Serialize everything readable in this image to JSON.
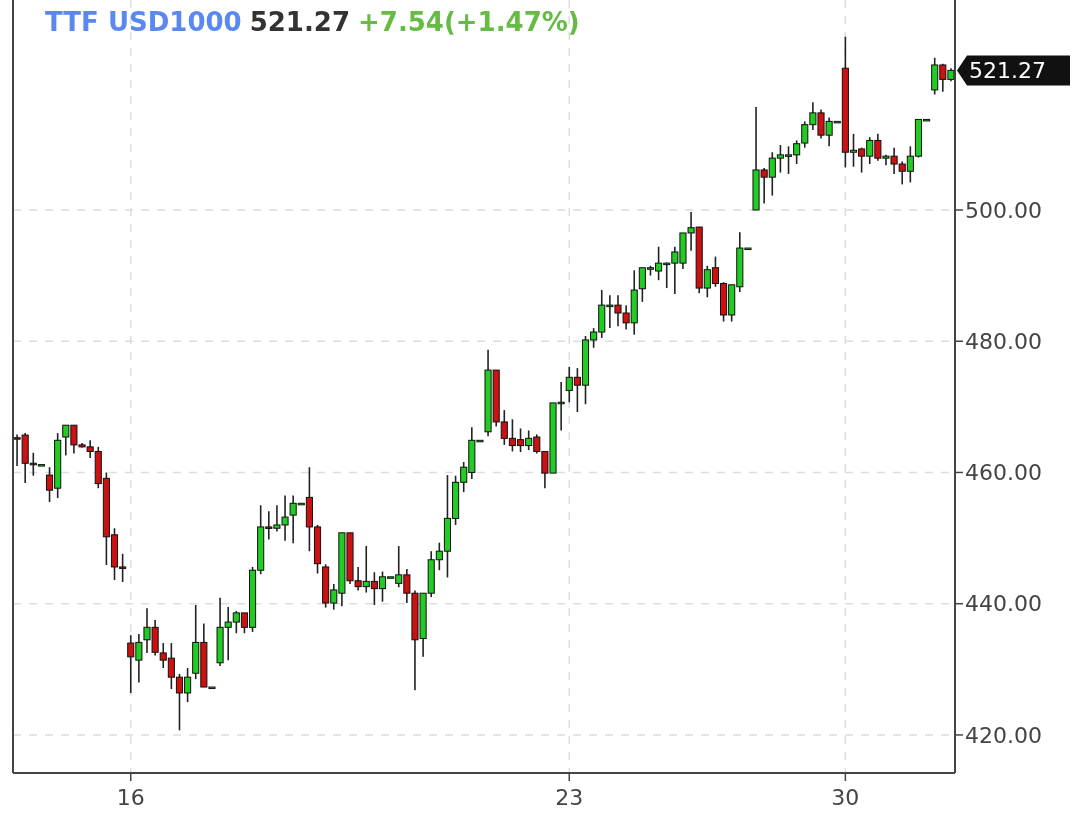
{
  "chart_data": {
    "type": "candlestick",
    "title": "TTF USD1000",
    "subtitle": "521.27",
    "annotations": [
      "+7.54(+1.47%)",
      "521.27"
    ],
    "categories": [
      null,
      null,
      null,
      null,
      null,
      null,
      null,
      null,
      null,
      null,
      null,
      null,
      null,
      null,
      "16",
      null,
      null,
      null,
      null,
      null,
      null,
      null,
      null,
      null,
      null,
      null,
      null,
      null,
      null,
      null,
      null,
      null,
      null,
      null,
      null,
      null,
      null,
      null,
      null,
      null,
      null,
      null,
      null,
      null,
      null,
      null,
      null,
      null,
      null,
      null,
      null,
      null,
      null,
      null,
      null,
      null,
      null,
      null,
      null,
      null,
      null,
      null,
      null,
      null,
      null,
      null,
      null,
      null,
      "23",
      null,
      null,
      null,
      null,
      null,
      null,
      null,
      null,
      null,
      null,
      null,
      null,
      null,
      null,
      null,
      null,
      null,
      null,
      null,
      null,
      null,
      null,
      null,
      null,
      null,
      null,
      null,
      null,
      null,
      null,
      null,
      null,
      null,
      "30",
      null,
      null,
      null,
      null,
      null,
      null,
      null,
      null,
      null,
      null,
      null,
      null,
      null
    ],
    "ohlc": [
      [
        465.3,
        465.8,
        461,
        465.1
      ],
      [
        465.7,
        466,
        458.4,
        461.4
      ],
      [
        461.4,
        463,
        459.5,
        461.2
      ],
      [
        461.2,
        461.2,
        461.2,
        461.2
      ],
      [
        459.6,
        460.8,
        455.5,
        457.3
      ],
      [
        457.6,
        466,
        456.1,
        464.9
      ],
      [
        465.4,
        467.2,
        462.6,
        467.2
      ],
      [
        467.2,
        467.2,
        462.9,
        464.2
      ],
      [
        464.2,
        464.5,
        463.8,
        463.9
      ],
      [
        463.9,
        464.9,
        462.2,
        463.2
      ],
      [
        463.2,
        463.9,
        457.6,
        458.3
      ],
      [
        459.1,
        460,
        445.9,
        450.2
      ],
      [
        450.5,
        451.5,
        443.6,
        445.6
      ],
      [
        445.6,
        447.6,
        443.3,
        445.4
      ],
      [
        434,
        435.2,
        426.4,
        431.9
      ],
      [
        431.4,
        435.4,
        428,
        434.1
      ],
      [
        434.5,
        439.3,
        432.5,
        436.4
      ],
      [
        436.4,
        437.5,
        432.1,
        432.6
      ],
      [
        432.5,
        434,
        430.2,
        431.4
      ],
      [
        431.7,
        434,
        427,
        428.8
      ],
      [
        428.8,
        429.3,
        420.7,
        426.4
      ],
      [
        426.4,
        430.2,
        425,
        428.8
      ],
      [
        429.4,
        439.8,
        428.5,
        434.1
      ],
      [
        434.1,
        437,
        427.3,
        427.3
      ],
      [
        427.3,
        427.3,
        427.3,
        427.3
      ],
      [
        431,
        440.9,
        430.5,
        436.4
      ],
      [
        436.4,
        439.5,
        431.4,
        437.2
      ],
      [
        437.2,
        438.9,
        435.5,
        438.6
      ],
      [
        438.6,
        438.6,
        435.5,
        436.4
      ],
      [
        436.4,
        445.6,
        435.7,
        445.1
      ],
      [
        445.1,
        455,
        444.5,
        451.7
      ],
      [
        451.7,
        454.1,
        449.8,
        451.5
      ],
      [
        451.5,
        455,
        451,
        452
      ],
      [
        452,
        456.5,
        449.6,
        453.2
      ],
      [
        453.5,
        456.5,
        449.2,
        455.3
      ],
      [
        455.3,
        455.3,
        455.3,
        455.3
      ],
      [
        456.2,
        460.8,
        448,
        451.7
      ],
      [
        451.7,
        452,
        444.6,
        446.1
      ],
      [
        445.6,
        446,
        439.4,
        440.1
      ],
      [
        440.1,
        443,
        439.1,
        442.1
      ],
      [
        441.6,
        450.8,
        439.6,
        450.8
      ],
      [
        450.8,
        450.8,
        443,
        443.5
      ],
      [
        443.5,
        445.6,
        442,
        442.6
      ],
      [
        442.6,
        448.8,
        441.7,
        443.4
      ],
      [
        443.4,
        444.8,
        439.8,
        442.3
      ],
      [
        442.3,
        444.9,
        440.3,
        444.1
      ],
      [
        444.1,
        444.1,
        444.1,
        444.1
      ],
      [
        443.1,
        448.8,
        442.5,
        444.4
      ],
      [
        444.4,
        445.3,
        440.1,
        441.6
      ],
      [
        441.6,
        442,
        426.8,
        434.5
      ],
      [
        434.7,
        441.6,
        431.9,
        441.6
      ],
      [
        441.6,
        448,
        441,
        446.7
      ],
      [
        446.7,
        449.3,
        445.1,
        448
      ],
      [
        448,
        459.6,
        444,
        453
      ],
      [
        453,
        459.5,
        452,
        458.5
      ],
      [
        458.5,
        461.6,
        457,
        460.8
      ],
      [
        460,
        466.9,
        459,
        464.9
      ],
      [
        464.9,
        464.9,
        464.9,
        464.9
      ],
      [
        466.2,
        478.7,
        465.5,
        475.6
      ],
      [
        475.6,
        475.6,
        467,
        467.7
      ],
      [
        467.7,
        469.5,
        464.2,
        465.2
      ],
      [
        465.2,
        468.1,
        463.2,
        464.1
      ],
      [
        465,
        466.7,
        463.1,
        464.1
      ],
      [
        464.1,
        466.4,
        463.4,
        465.2
      ],
      [
        465.4,
        465.8,
        462.9,
        463.2
      ],
      [
        463.2,
        463.2,
        457.6,
        459.9
      ],
      [
        459.9,
        470.6,
        459.9,
        470.6
      ],
      [
        470.6,
        473.8,
        466.4,
        470.7
      ],
      [
        472.5,
        476.1,
        470.7,
        474.5
      ],
      [
        474.5,
        475.9,
        469.2,
        473.3
      ],
      [
        473.3,
        480.8,
        470.4,
        480.2
      ],
      [
        480.2,
        482,
        479,
        481.4
      ],
      [
        481.4,
        487.8,
        480.5,
        485.5
      ],
      [
        485.5,
        487,
        482,
        485.5
      ],
      [
        485.5,
        487,
        482.3,
        484.3
      ],
      [
        484.3,
        485.5,
        481.8,
        482.8
      ],
      [
        482.8,
        490.8,
        481,
        487.8
      ],
      [
        488,
        491.2,
        486,
        491.2
      ],
      [
        491.2,
        491.5,
        490,
        491.2
      ],
      [
        490.7,
        494.4,
        489.3,
        491.9
      ],
      [
        491.9,
        492,
        488.1,
        491.9
      ],
      [
        491.9,
        494.4,
        487.2,
        493.6
      ],
      [
        491.9,
        496.5,
        491,
        496.5
      ],
      [
        496.5,
        499.7,
        493.8,
        497.3
      ],
      [
        497.4,
        497.4,
        487.3,
        488.1
      ],
      [
        488.1,
        491.5,
        486.7,
        490.9
      ],
      [
        491.2,
        492.9,
        488.3,
        488.8
      ],
      [
        488.8,
        489,
        483,
        484
      ],
      [
        484,
        488.6,
        483,
        488.6
      ],
      [
        488.3,
        496.6,
        487.5,
        494.2
      ],
      [
        494.2,
        494.2,
        494.2,
        494.2
      ],
      [
        500,
        515.7,
        500,
        506.1
      ],
      [
        506.1,
        506.4,
        501,
        505
      ],
      [
        505,
        508.8,
        502.2,
        507.9
      ],
      [
        507.9,
        509.9,
        505.7,
        508.4
      ],
      [
        508.4,
        509.7,
        505.5,
        508.4
      ],
      [
        508.4,
        510.6,
        507,
        510.1
      ],
      [
        510.2,
        513.5,
        509.5,
        513
      ],
      [
        513,
        516.4,
        512.2,
        514.8
      ],
      [
        514.8,
        515.3,
        510.9,
        511.4
      ],
      [
        511.4,
        514.1,
        509.7,
        513.5
      ],
      [
        513.5,
        513.5,
        513.5,
        513.5
      ],
      [
        521.6,
        526.4,
        506.5,
        508.8
      ],
      [
        508.8,
        511.6,
        506.6,
        509.1
      ],
      [
        509.3,
        509.5,
        505.7,
        508.2
      ],
      [
        508.2,
        511.1,
        507,
        510.6
      ],
      [
        510.6,
        511.6,
        507.5,
        507.9
      ],
      [
        507.9,
        508.4,
        506.8,
        508.2
      ],
      [
        508.2,
        509.5,
        505.5,
        507
      ],
      [
        507,
        507.4,
        503.9,
        505.9
      ],
      [
        505.9,
        509.7,
        504.2,
        508.2
      ],
      [
        508.2,
        513.8,
        508,
        513.8
      ],
      [
        513.8,
        513.8,
        513.8,
        513.8
      ],
      [
        518.3,
        523.2,
        517.6,
        522.1
      ],
      [
        522.1,
        522.3,
        518,
        519.9
      ],
      [
        519.9,
        521.6,
        519.6,
        521.27
      ]
    ],
    "ylim": [
      414.2,
      532
    ],
    "yticks": [
      {
        "value": 420,
        "label": "420.00"
      },
      {
        "value": 440,
        "label": "440.00"
      },
      {
        "value": 460,
        "label": "460.00"
      },
      {
        "value": 480,
        "label": "480.00"
      },
      {
        "value": 500,
        "label": "500.00"
      }
    ],
    "grid": true
  }
}
